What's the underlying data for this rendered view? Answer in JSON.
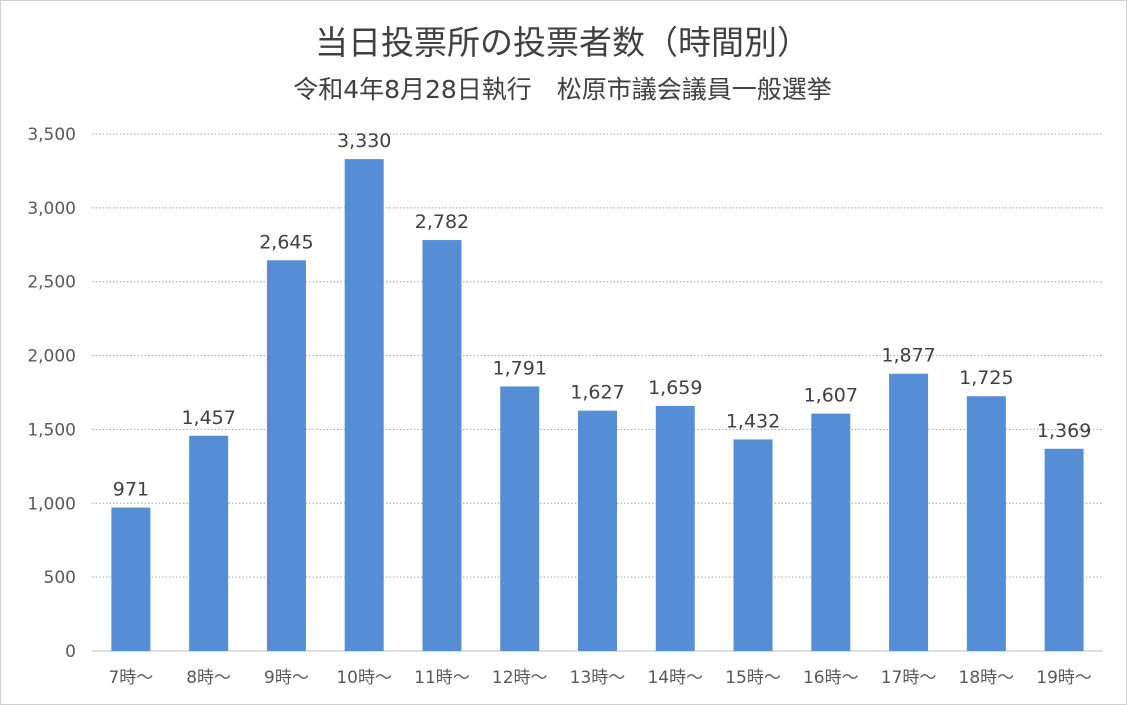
{
  "chart_data": {
    "type": "bar",
    "title": "当日投票所の投票者数（時間別）",
    "subtitle": "令和4年8月28日執行　松原市議会議員一般選挙",
    "categories": [
      "7時～",
      "8時～",
      "9時～",
      "10時～",
      "11時～",
      "12時～",
      "13時～",
      "14時～",
      "15時～",
      "16時～",
      "17時～",
      "18時～",
      "19時～"
    ],
    "values": [
      971,
      1457,
      2645,
      3330,
      2782,
      1791,
      1627,
      1659,
      1432,
      1607,
      1877,
      1725,
      1369
    ],
    "data_labels": [
      "971",
      "1,457",
      "2,645",
      "3,330",
      "2,782",
      "1,791",
      "1,627",
      "1,659",
      "1,432",
      "1,607",
      "1,877",
      "1,725",
      "1,369"
    ],
    "ylim": [
      0,
      3500
    ],
    "yticks": [
      0,
      500,
      1000,
      1500,
      2000,
      2500,
      3000,
      3500
    ],
    "ytick_labels": [
      "0",
      "500",
      "1,000",
      "1,500",
      "2,000",
      "2,500",
      "3,000",
      "3,500"
    ],
    "xlabel": "",
    "ylabel": "",
    "grid": true,
    "bar_color": "#558ed5"
  }
}
